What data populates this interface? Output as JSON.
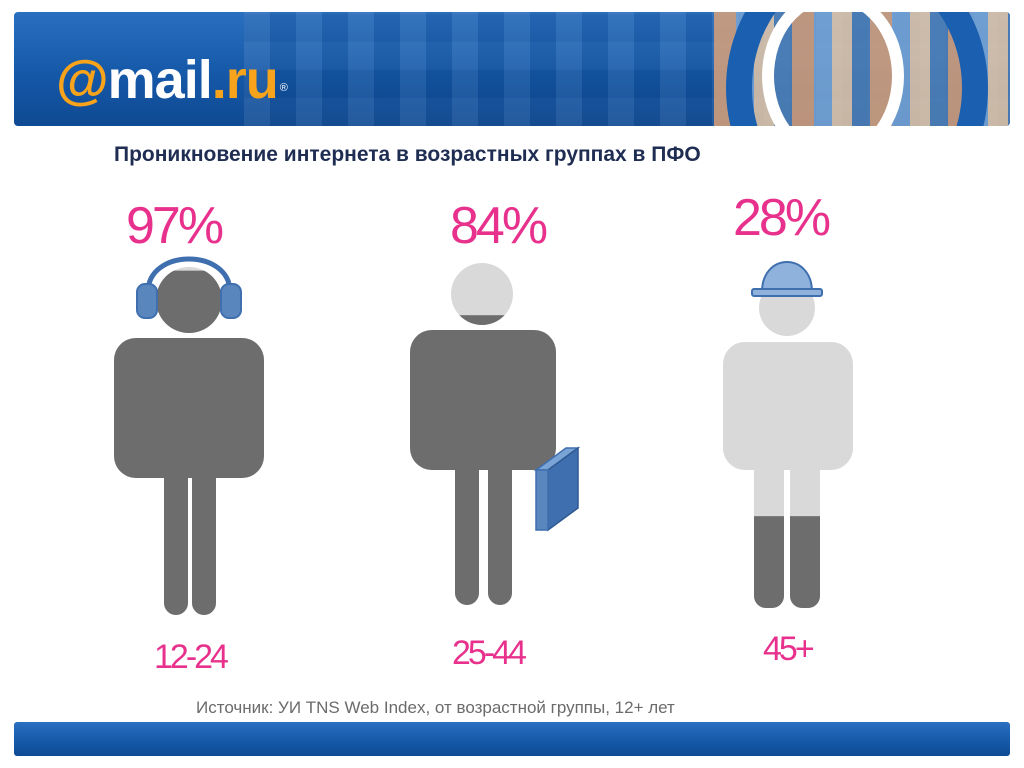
{
  "brand": {
    "at": "@",
    "name": "mail",
    "dot": ".",
    "tld": "ru",
    "reg": "®"
  },
  "title": "Проникновение интернета в возрастных группах в ПФО",
  "chart_data": {
    "type": "bar",
    "categories": [
      "12-24",
      "25-44",
      "45+"
    ],
    "values": [
      97,
      84,
      28
    ],
    "value_labels": [
      "97%",
      "84%",
      "28%"
    ],
    "title": "Проникновение интернета в возрастных группах в ПФО",
    "ylim": [
      0,
      100
    ],
    "colors": {
      "filled": "#6d6d6d",
      "empty": "#d9d9d9",
      "accent_text": "#e8318c",
      "accessory": "#5a86be"
    }
  },
  "source": "Источник: УИ TNS Web Index, от возрастной группы, 12+ лет"
}
